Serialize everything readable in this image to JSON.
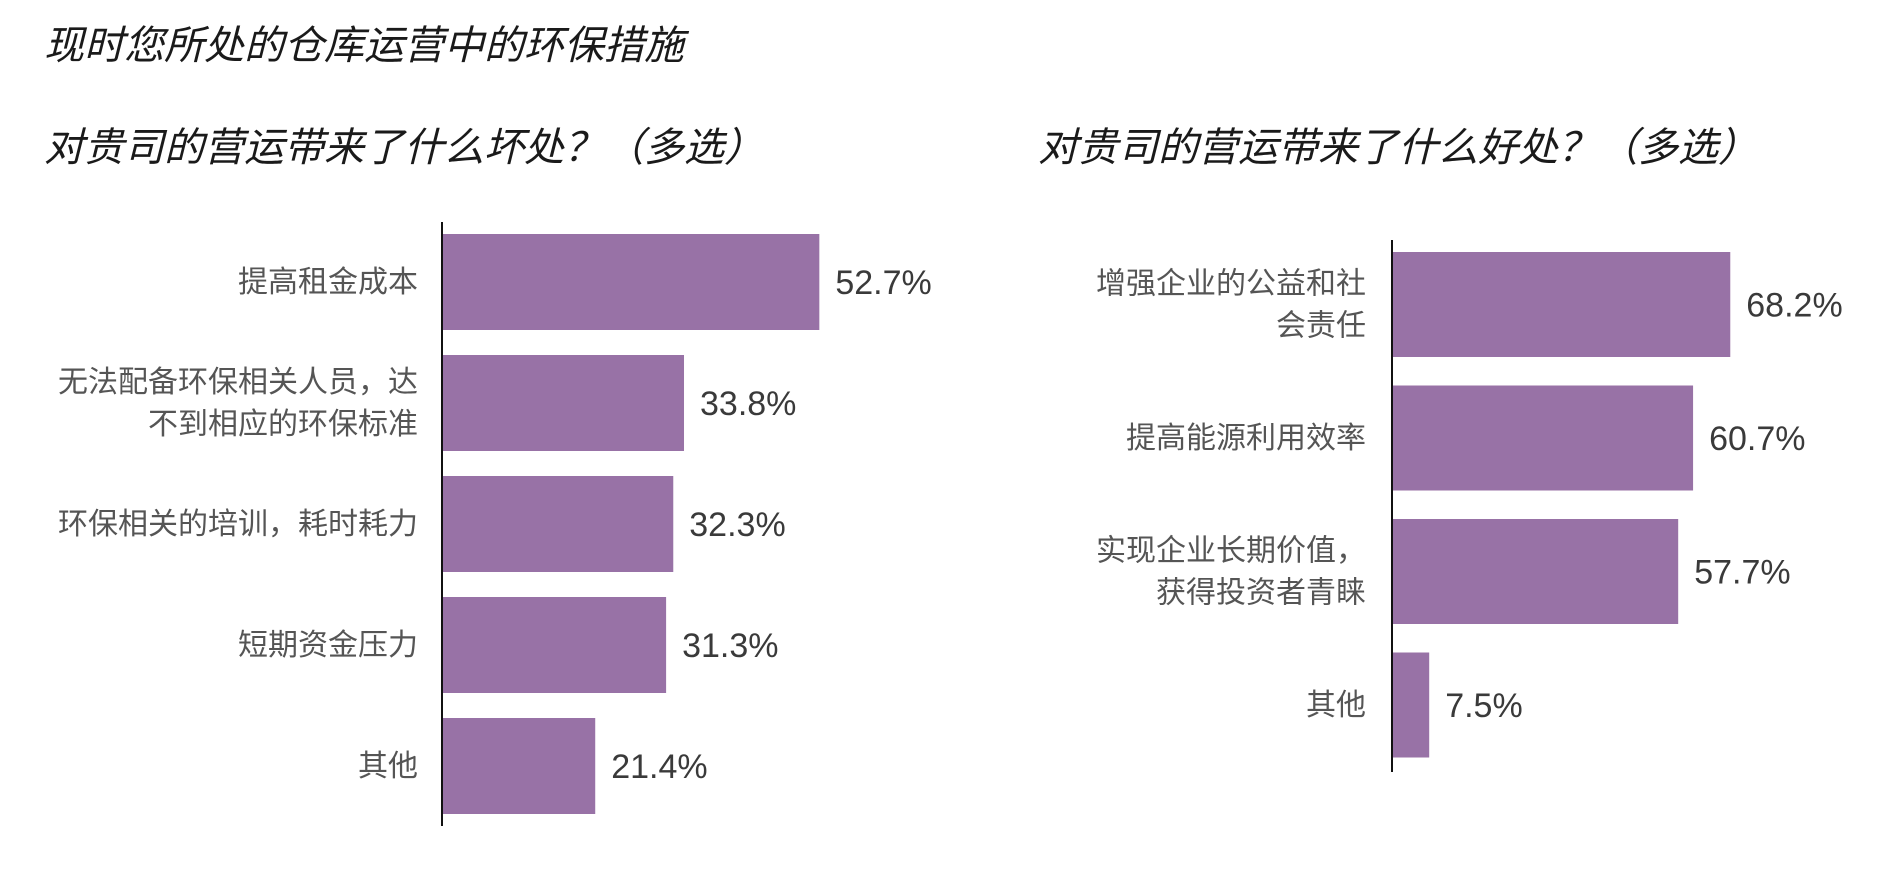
{
  "main_title": "现时您所处的仓库运营中的环保措施",
  "bar_color": "#9872a6",
  "axis_color": "#111111",
  "chart_data": [
    {
      "type": "bar",
      "orientation": "horizontal",
      "title": "对贵司的营运带来了什么坏处？（多选）",
      "categories": [
        [
          "提高租金成本"
        ],
        [
          "无法配备环保相关人员，达",
          "不到相应的环保标准"
        ],
        [
          "环保相关的培训，耗时耗力"
        ],
        [
          "短期资金压力"
        ],
        [
          "其他"
        ]
      ],
      "values": [
        52.7,
        33.8,
        32.3,
        31.3,
        21.4
      ],
      "value_labels": [
        "52.7%",
        "33.8%",
        "32.3%",
        "31.3%",
        "21.4%"
      ],
      "xlim": [
        0,
        60
      ],
      "grid": false
    },
    {
      "type": "bar",
      "orientation": "horizontal",
      "title": "对贵司的营运带来了什么好处？（多选）",
      "categories": [
        [
          "增强企业的公益和社",
          "会责任"
        ],
        [
          "提高能源利用效率"
        ],
        [
          "实现企业长期价值，",
          "获得投资者青睐"
        ],
        [
          "其他"
        ]
      ],
      "values": [
        68.2,
        60.7,
        57.7,
        7.5
      ],
      "value_labels": [
        "68.2%",
        "60.7%",
        "57.7%",
        "7.5%"
      ],
      "xlim": [
        0,
        90
      ],
      "grid": false
    }
  ]
}
